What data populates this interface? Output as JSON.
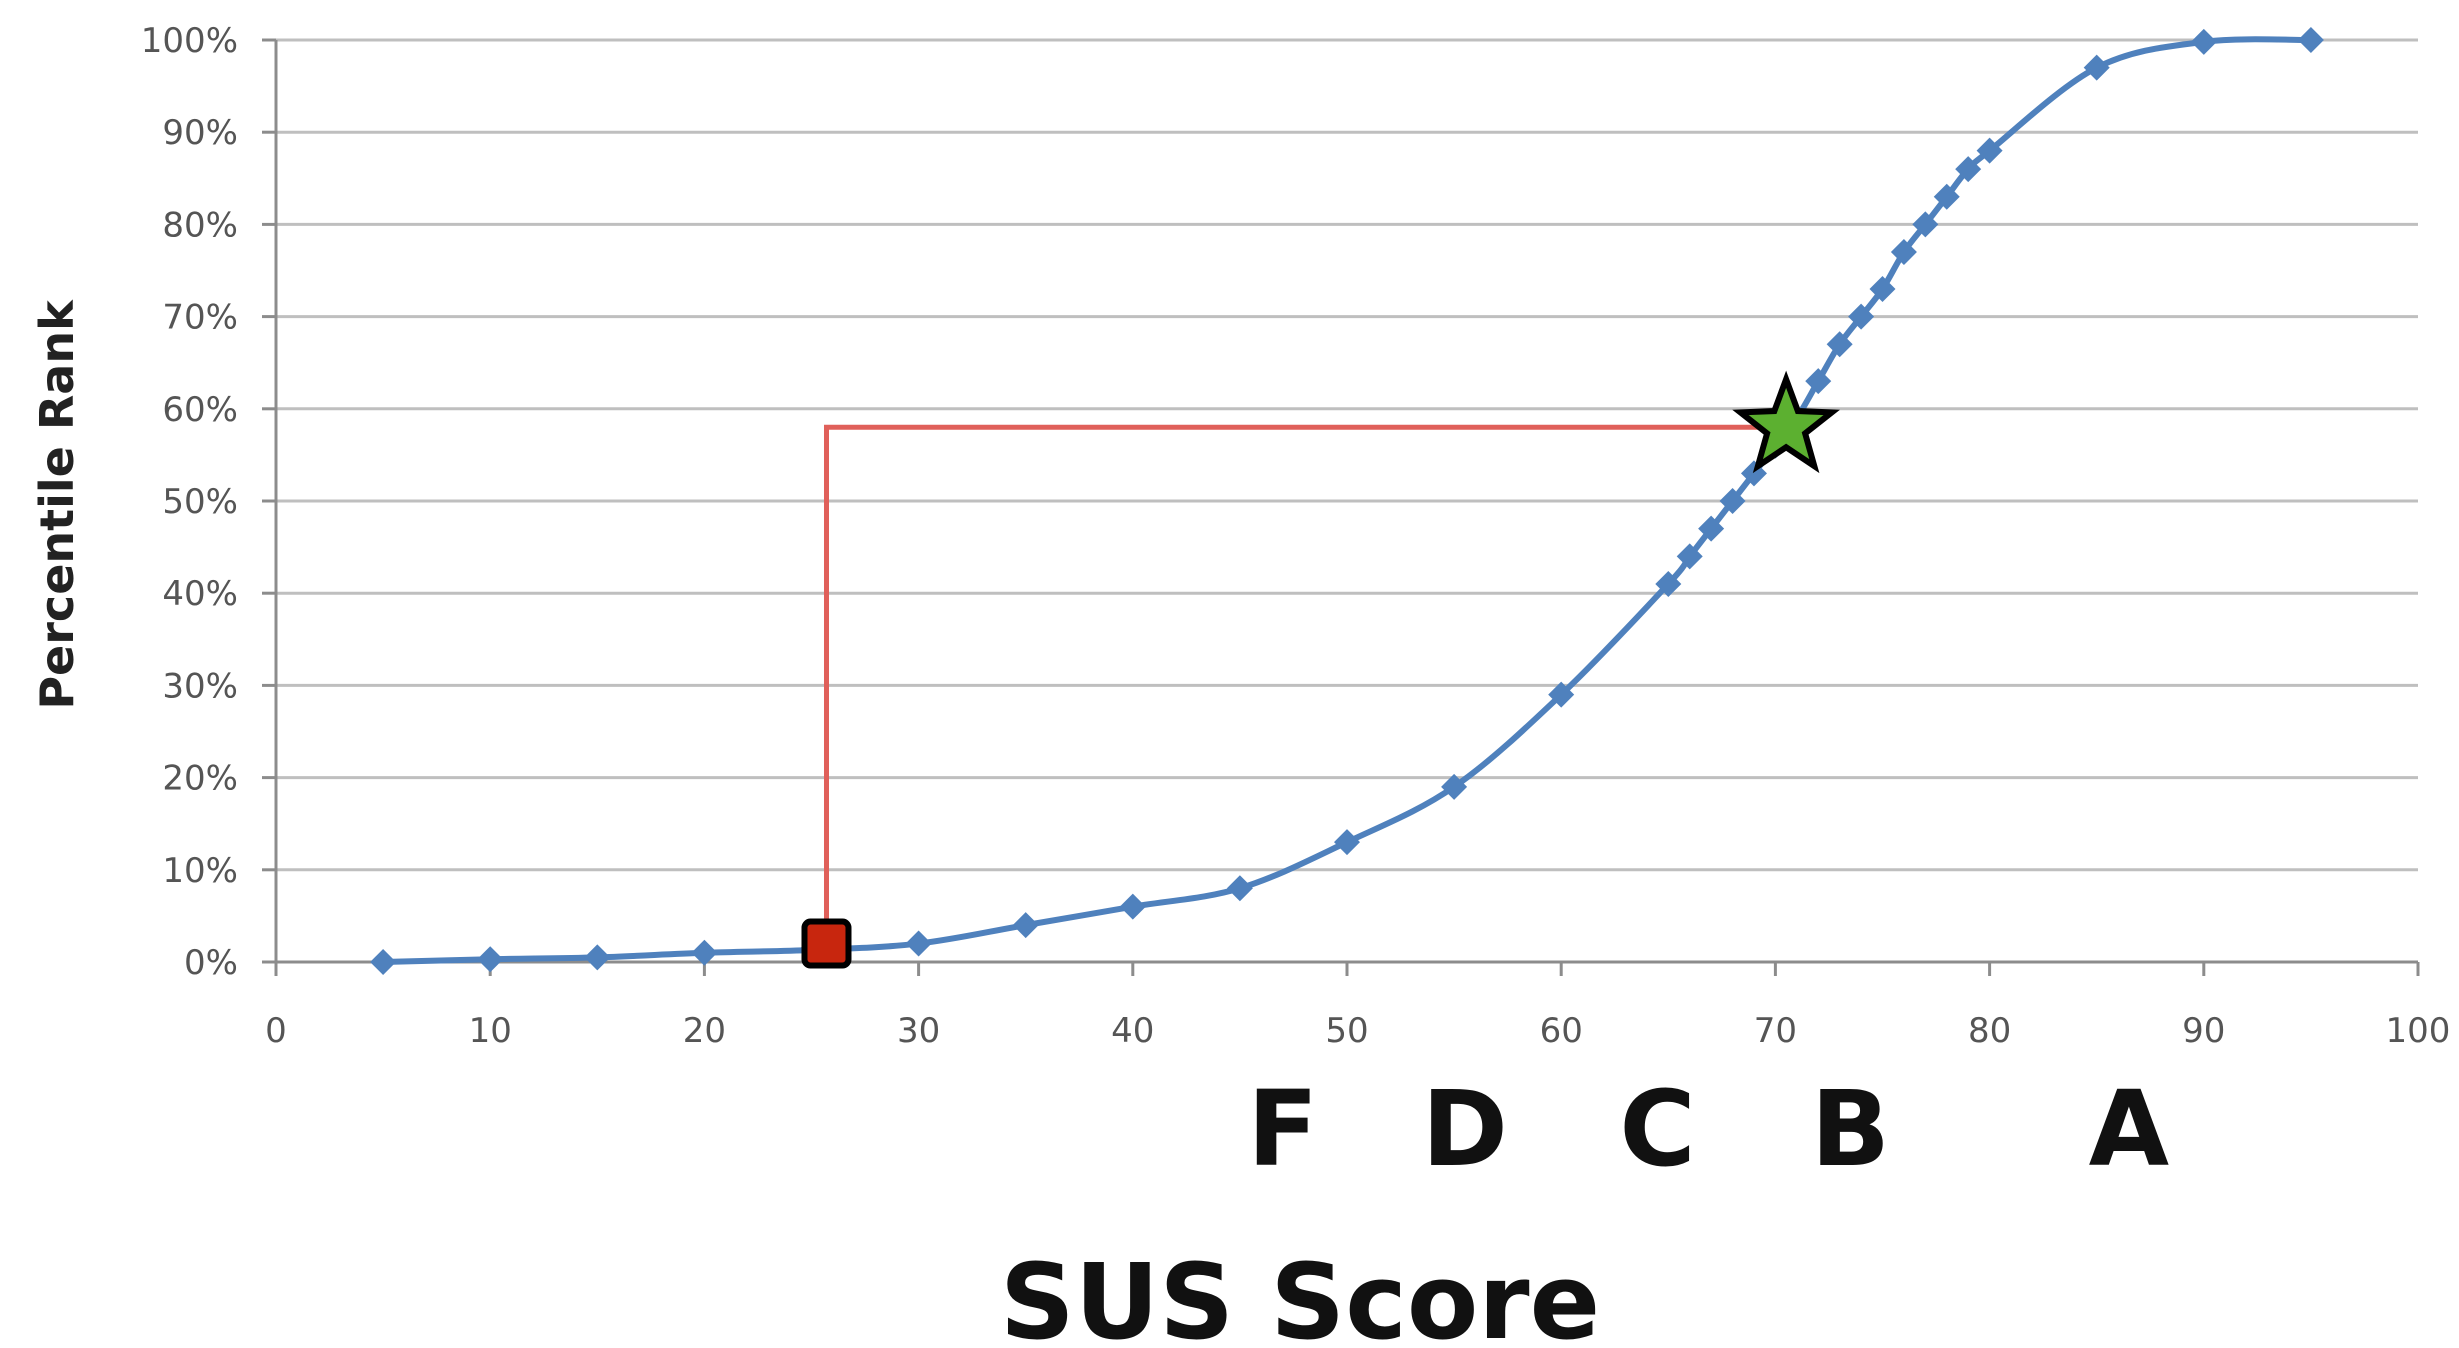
{
  "chart_data": {
    "type": "line",
    "title": "",
    "xlabel": "SUS Score",
    "ylabel": "Percentile Rank",
    "xlim": [
      0,
      100
    ],
    "ylim": [
      0,
      100
    ],
    "x_ticks": [
      "0",
      "10",
      "20",
      "30",
      "40",
      "50",
      "60",
      "70",
      "80",
      "90",
      "100"
    ],
    "y_ticks": [
      "0%",
      "10%",
      "20%",
      "30%",
      "40%",
      "50%",
      "60%",
      "70%",
      "80%",
      "90%",
      "100%"
    ],
    "grid": "horizontal",
    "legend": "none",
    "series": [
      {
        "color": "#4f81bd",
        "marker": "diamond",
        "points": [
          {
            "x": 5,
            "y": 0
          },
          {
            "x": 10,
            "y": 0.3
          },
          {
            "x": 15,
            "y": 0.5
          },
          {
            "x": 20,
            "y": 1
          },
          {
            "x": 25,
            "y": 1.3
          },
          {
            "x": 30,
            "y": 2
          },
          {
            "x": 35,
            "y": 4
          },
          {
            "x": 40,
            "y": 6
          },
          {
            "x": 45,
            "y": 8
          },
          {
            "x": 50,
            "y": 13
          },
          {
            "x": 55,
            "y": 19
          },
          {
            "x": 60,
            "y": 29
          },
          {
            "x": 65,
            "y": 41
          },
          {
            "x": 66,
            "y": 44
          },
          {
            "x": 67,
            "y": 47
          },
          {
            "x": 68,
            "y": 50
          },
          {
            "x": 69,
            "y": 53
          },
          {
            "x": 70,
            "y": 56
          },
          {
            "x": 71,
            "y": 59
          },
          {
            "x": 72,
            "y": 63
          },
          {
            "x": 73,
            "y": 67
          },
          {
            "x": 74,
            "y": 70
          },
          {
            "x": 75,
            "y": 73
          },
          {
            "x": 76,
            "y": 77
          },
          {
            "x": 77,
            "y": 80
          },
          {
            "x": 78,
            "y": 83
          },
          {
            "x": 79,
            "y": 86
          },
          {
            "x": 80,
            "y": 88
          },
          {
            "x": 85,
            "y": 97
          },
          {
            "x": 90,
            "y": 99.8
          },
          {
            "x": 95,
            "y": 100
          }
        ]
      }
    ],
    "annotations": {
      "star": {
        "x": 70.5,
        "y": 58,
        "fill": "#5cb030",
        "stroke": "#000000"
      },
      "square": {
        "x": 25.7,
        "y": 2,
        "fill": "#c8260e",
        "stroke": "#000000"
      },
      "connector_color": "#e0605a"
    },
    "grades": [
      {
        "label": "F",
        "x": 47
      },
      {
        "label": "D",
        "x": 55.5
      },
      {
        "label": "C",
        "x": 64.5
      },
      {
        "label": "B",
        "x": 73.5
      },
      {
        "label": "A",
        "x": 86.5
      }
    ],
    "colors": {
      "grid": "#bfbfbf",
      "axis": "#8c8c8c",
      "line": "#4f81bd"
    }
  }
}
